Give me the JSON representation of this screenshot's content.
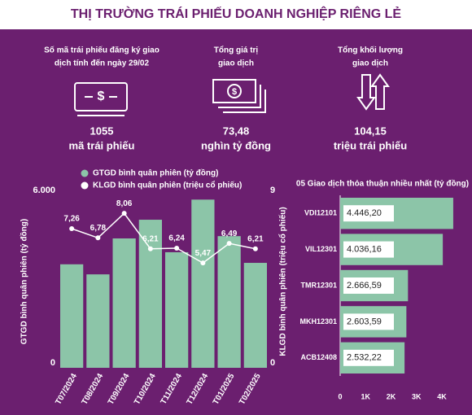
{
  "header": {
    "title": "THỊ TRƯỜNG TRÁI PHIẾU DOANH NGHIỆP RIÊNG LẺ"
  },
  "stats": [
    {
      "label_lines": [
        "Số mã trái phiếu đăng ký giao",
        "dịch tính đến ngày 29/02"
      ],
      "value": "1055",
      "unit": "mã trái phiếu"
    },
    {
      "label_lines": [
        "Tổng giá trị",
        "giao dịch"
      ],
      "value": "73,48",
      "unit": "nghìn tỷ đồng"
    },
    {
      "label_lines": [
        "Tổng khối lượng",
        "giao dịch"
      ],
      "value": "104,15",
      "unit": "triệu trái phiếu"
    }
  ],
  "chart_data": [
    {
      "type": "combo",
      "ylabel": "GTGD bình quân phiên (tỷ đồng)",
      "y2label": "KLGD bình quân phiên (triệu cổ phiếu)",
      "categories": [
        "T07/2024",
        "T08/2024",
        "T09/2024",
        "T10/2024",
        "T11/2024",
        "T12/2024",
        "T01/2025",
        "T02/2025"
      ],
      "series": [
        {
          "name": "GTGD bình quân phiên (tỷ đồng)",
          "type": "bar",
          "color": "#8cc5a8",
          "values": [
            3600,
            3250,
            4500,
            5150,
            4020,
            5850,
            4580,
            3650
          ]
        },
        {
          "name": "KLGD bình quân phiên (triệu cổ phiếu)",
          "type": "line",
          "axis": "y2",
          "color": "#ffffff",
          "values": [
            7.26,
            6.78,
            8.06,
            6.21,
            6.24,
            5.47,
            6.49,
            6.21
          ],
          "value_labels": [
            "7,26",
            "6,78",
            "8,06",
            "6,21",
            "6,24",
            "5,47",
            "6,49",
            "6,21"
          ]
        }
      ],
      "ylim": [
        0,
        6000
      ],
      "yticks": [
        0,
        {
          "value": 6000,
          "label": "6.000"
        }
      ],
      "y2lim": [
        0,
        9
      ],
      "y2ticks": [
        0,
        9
      ],
      "legend": "top"
    },
    {
      "type": "hbar",
      "title": "05 Giao dịch thỏa thuận nhiều nhất (tỷ đồng)",
      "categories": [
        "VDI12101",
        "VIL12301",
        "TMR12301",
        "MKH12301",
        "ACB12408"
      ],
      "values": [
        4446.2,
        4036.16,
        2666.59,
        2603.59,
        2532.22
      ],
      "value_labels": [
        "4.446,20",
        "4.036,16",
        "2.666,59",
        "2.603,59",
        "2.532,22"
      ],
      "color": "#8cc5a8",
      "xlim": [
        0,
        4800
      ],
      "xticks": [
        0,
        {
          "value": 1000,
          "label": "1K"
        },
        {
          "value": 2000,
          "label": "2K"
        },
        {
          "value": 3000,
          "label": "3K"
        },
        {
          "value": 4000,
          "label": "4K"
        }
      ]
    }
  ]
}
